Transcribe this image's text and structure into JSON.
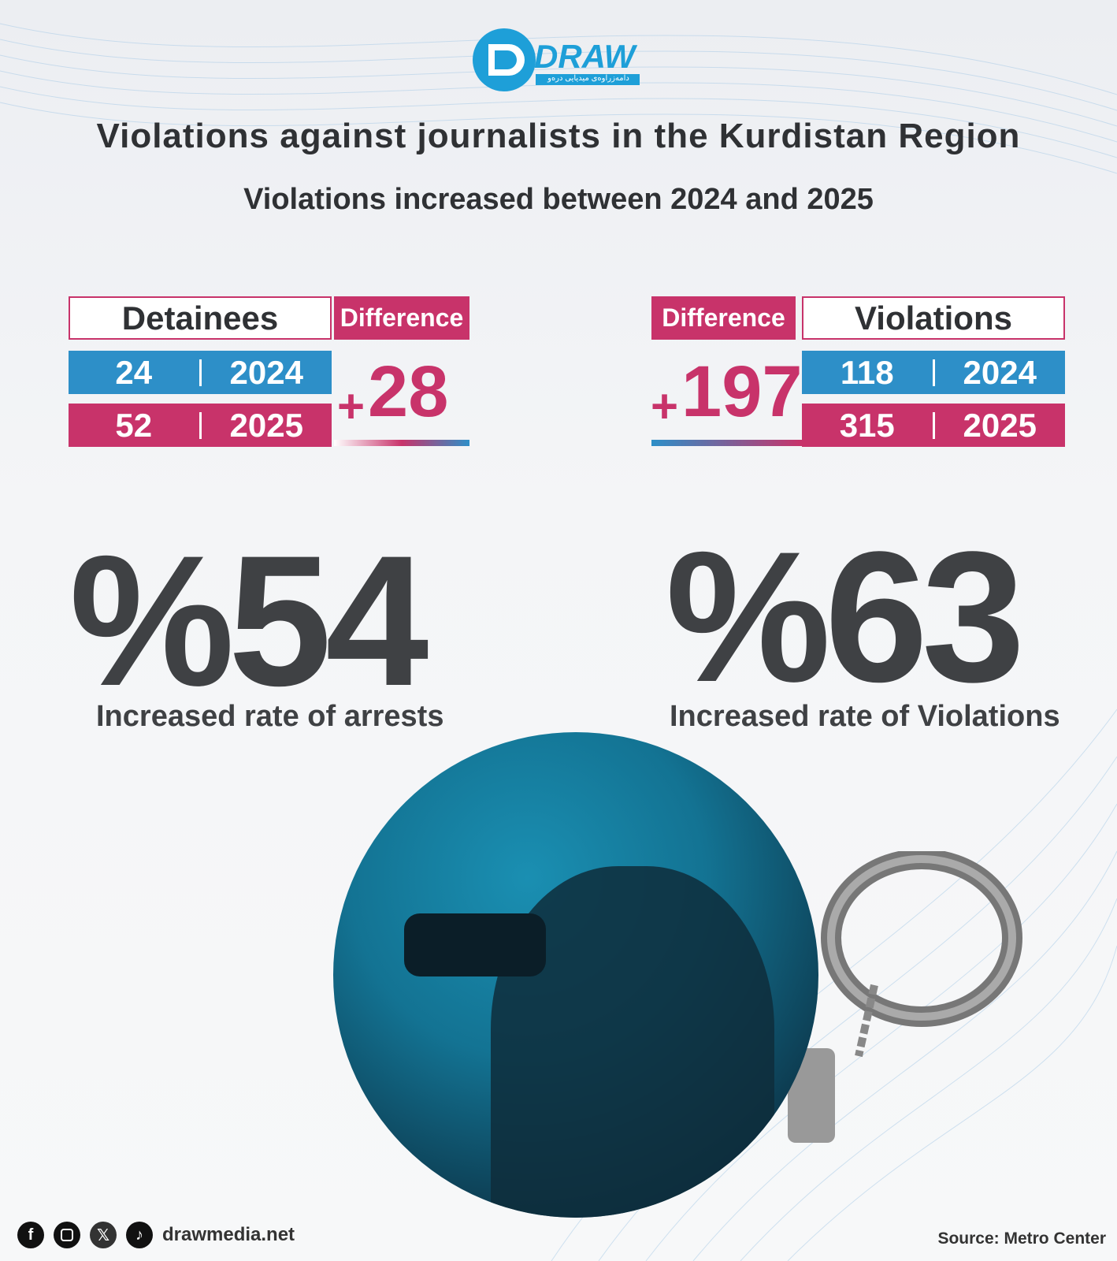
{
  "logo": {
    "text": "DRAW",
    "subtitle": "دامەزراوەی میدیایی درەو"
  },
  "title": "Violations against journalists in the Kurdistan Region",
  "subtitle": "Violations  increased between 2024 and 2025",
  "detainees": {
    "header": "Detainees",
    "difference_label": "Difference",
    "rows": [
      {
        "value": "24",
        "year": "2024"
      },
      {
        "value": "52",
        "year": "2025"
      }
    ],
    "difference_sign": "+",
    "difference": "28",
    "percent": "%54",
    "caption": "Increased rate of arrests"
  },
  "violations": {
    "header": "Violations",
    "difference_label": "Difference",
    "rows": [
      {
        "value": "118",
        "year": "2024"
      },
      {
        "value": "315",
        "year": "2025"
      }
    ],
    "difference_sign": "+",
    "difference": "197",
    "percent": "%63",
    "caption": "Increased rate of Violations"
  },
  "footer": {
    "social": [
      "facebook-icon",
      "instagram-icon",
      "x-icon",
      "tiktok-icon"
    ],
    "website": "drawmedia.net",
    "source": "Source: Metro Center"
  },
  "colors": {
    "blue": "#2d8fc8",
    "pink": "#c8336a",
    "dark": "#3f4144"
  }
}
